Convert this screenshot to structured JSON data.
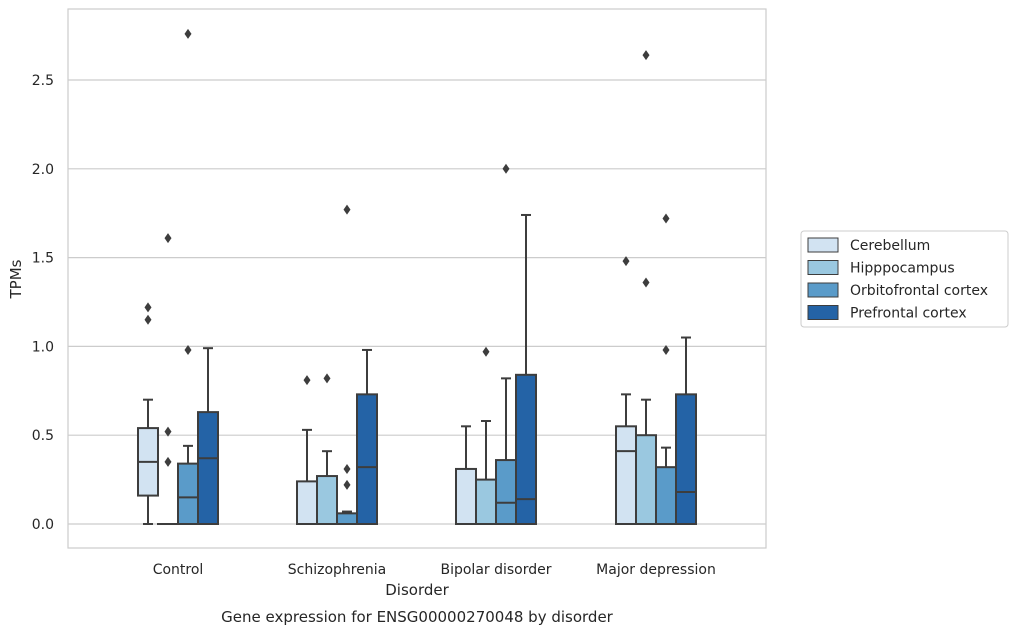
{
  "chart_data": {
    "type": "boxplot",
    "title": "",
    "caption": "Gene expression for ENSG00000270048 by disorder",
    "xlabel": "Disorder",
    "ylabel": "TPMs",
    "ylim": [
      -0.13,
      2.91
    ],
    "yticks": [
      "0.0",
      "0.5",
      "1.0",
      "1.5",
      "2.0",
      "2.5"
    ],
    "ytick_values": [
      0,
      0.5,
      1.0,
      1.5,
      2.0,
      2.5
    ],
    "grid": "horizontal",
    "legend_position": "right",
    "categories": [
      "Control",
      "Schizophrenia",
      "Bipolar disorder",
      "Major depression"
    ],
    "series": [
      {
        "name": "Cerebellum",
        "color": "#d2e3f2",
        "boxes": [
          {
            "whislo": 0.0,
            "q1": 0.16,
            "med": 0.35,
            "q3": 0.54,
            "whishi": 0.7,
            "fliers": [
              1.22,
              1.15
            ]
          },
          {
            "whislo": 0.0,
            "q1": 0.0,
            "med": 0.0,
            "q3": 0.24,
            "whishi": 0.53,
            "fliers": [
              0.81
            ]
          },
          {
            "whislo": 0.0,
            "q1": 0.0,
            "med": 0.0,
            "q3": 0.31,
            "whishi": 0.55,
            "fliers": []
          },
          {
            "whislo": 0.0,
            "q1": 0.0,
            "med": 0.41,
            "q3": 0.55,
            "whishi": 0.73,
            "fliers": [
              1.48
            ]
          }
        ]
      },
      {
        "name": "Hipppocampus",
        "color": "#9ac8e0",
        "boxes": [
          {
            "whislo": 0.0,
            "q1": 0.0,
            "med": 0.0,
            "q3": 0.0,
            "whishi": 0.0,
            "fliers": [
              1.61,
              0.52,
              0.35
            ]
          },
          {
            "whislo": 0.0,
            "q1": 0.0,
            "med": 0.0,
            "q3": 0.27,
            "whishi": 0.41,
            "fliers": [
              0.82
            ]
          },
          {
            "whislo": 0.0,
            "q1": 0.0,
            "med": 0.0,
            "q3": 0.25,
            "whishi": 0.58,
            "fliers": [
              0.97
            ]
          },
          {
            "whislo": 0.0,
            "q1": 0.0,
            "med": 0.0,
            "q3": 0.5,
            "whishi": 0.7,
            "fliers": [
              2.64,
              1.36
            ]
          }
        ]
      },
      {
        "name": "Orbitofrontal cortex",
        "color": "#5a9bc9",
        "boxes": [
          {
            "whislo": 0.0,
            "q1": 0.0,
            "med": 0.15,
            "q3": 0.34,
            "whishi": 0.44,
            "fliers": [
              2.76,
              0.98
            ]
          },
          {
            "whislo": 0.0,
            "q1": 0.0,
            "med": 0.0,
            "q3": 0.06,
            "whishi": 0.07,
            "fliers": [
              1.77,
              0.31,
              0.22
            ]
          },
          {
            "whislo": 0.0,
            "q1": 0.0,
            "med": 0.12,
            "q3": 0.36,
            "whishi": 0.82,
            "fliers": [
              2.0
            ]
          },
          {
            "whislo": 0.0,
            "q1": 0.0,
            "med": 0.0,
            "q3": 0.32,
            "whishi": 0.43,
            "fliers": [
              1.72,
              0.98
            ]
          }
        ]
      },
      {
        "name": "Prefrontal cortex",
        "color": "#2463a6",
        "boxes": [
          {
            "whislo": 0.0,
            "q1": 0.0,
            "med": 0.37,
            "q3": 0.63,
            "whishi": 0.99,
            "fliers": []
          },
          {
            "whislo": 0.0,
            "q1": 0.0,
            "med": 0.32,
            "q3": 0.73,
            "whishi": 0.98,
            "fliers": []
          },
          {
            "whislo": 0.0,
            "q1": 0.0,
            "med": 0.14,
            "q3": 0.84,
            "whishi": 1.74,
            "fliers": []
          },
          {
            "whislo": 0.0,
            "q1": 0.0,
            "med": 0.18,
            "q3": 0.73,
            "whishi": 1.05,
            "fliers": []
          }
        ]
      }
    ]
  }
}
